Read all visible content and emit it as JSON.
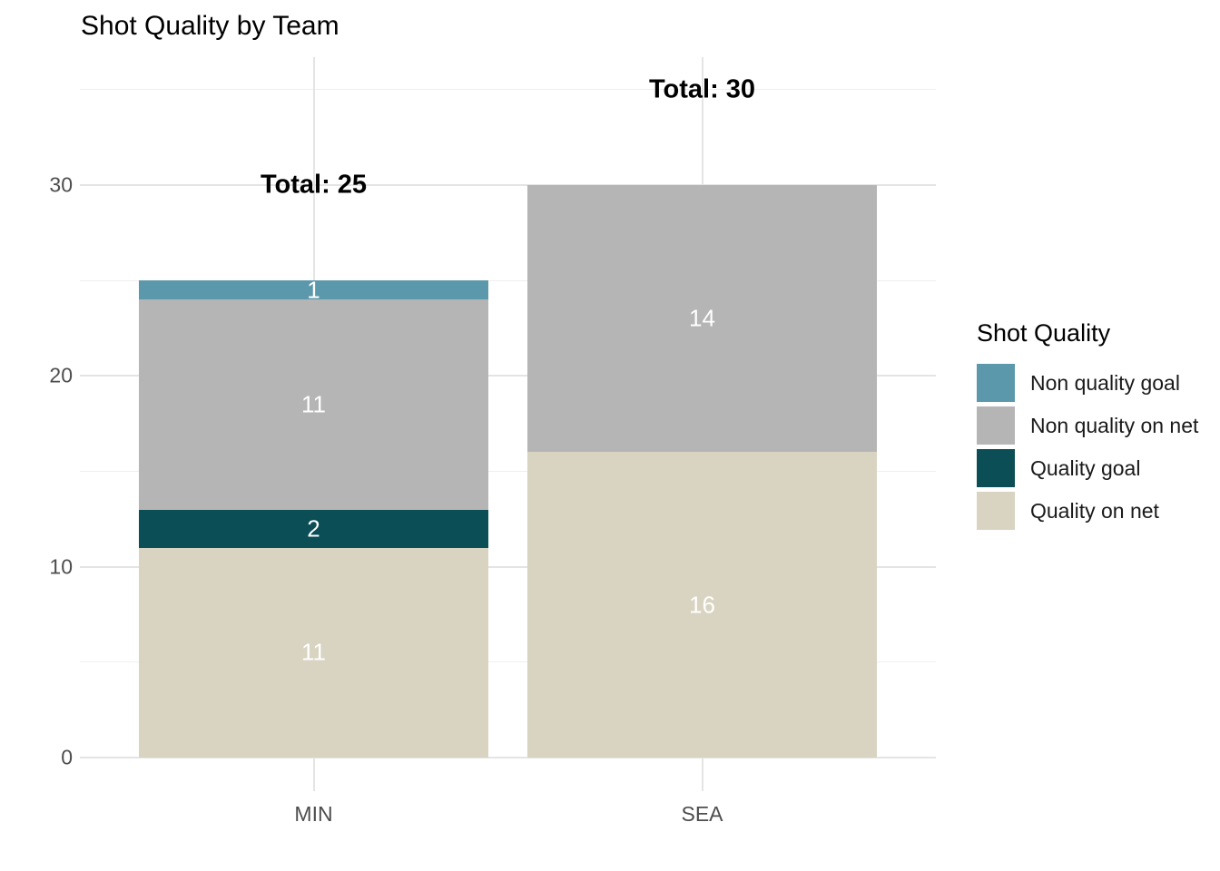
{
  "chart_data": {
    "type": "bar",
    "stacked": true,
    "title": "Shot Quality by Team",
    "categories": [
      "MIN",
      "SEA"
    ],
    "series": [
      {
        "name": "Quality on net",
        "color": "#d9d3c1",
        "values": [
          11,
          16
        ]
      },
      {
        "name": "Quality goal",
        "color": "#0b4e56",
        "values": [
          2,
          0
        ]
      },
      {
        "name": "Non quality on net",
        "color": "#b5b5b5",
        "values": [
          11,
          14
        ]
      },
      {
        "name": "Non quality goal",
        "color": "#5c98ab",
        "values": [
          1,
          0
        ]
      }
    ],
    "totals": [
      {
        "value": 25,
        "label": "Total: 25"
      },
      {
        "value": 30,
        "label": "Total: 30"
      }
    ],
    "yticks_major": [
      0,
      10,
      20,
      30
    ],
    "yticks_minor": [
      5,
      15,
      25,
      35
    ],
    "ylim": [
      0,
      35
    ],
    "grid": true,
    "value_label_color": "#ffffff",
    "legend": {
      "position": "right",
      "title": "Shot Quality",
      "entries": [
        {
          "label": "Non quality goal",
          "color": "#5c98ab"
        },
        {
          "label": "Non quality on net",
          "color": "#b5b5b5"
        },
        {
          "label": "Quality goal",
          "color": "#0b4e56"
        },
        {
          "label": "Quality on net",
          "color": "#d9d3c1"
        }
      ]
    }
  }
}
